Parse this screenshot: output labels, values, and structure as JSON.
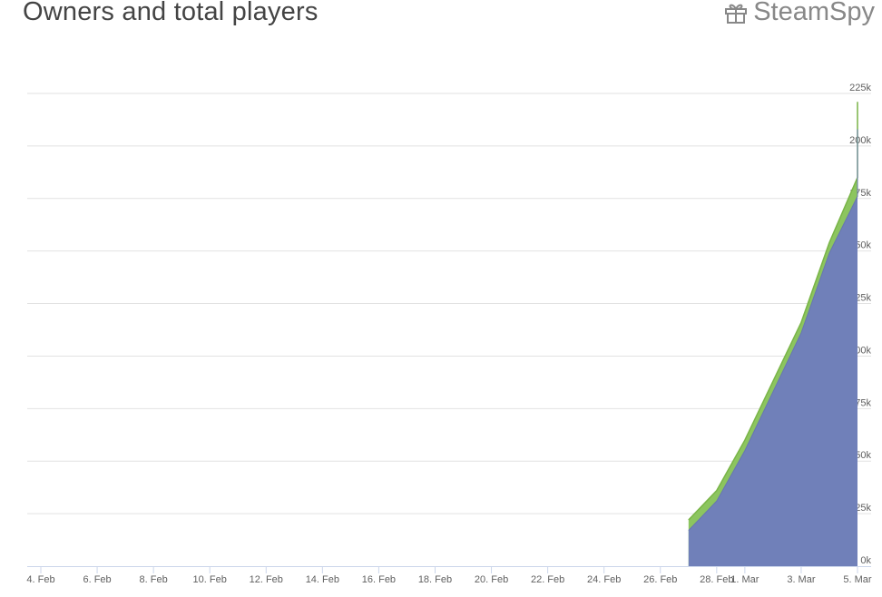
{
  "header": {
    "title": "Owners and total players",
    "brand": "SteamSpy",
    "brand_icon": "gift-icon"
  },
  "colors": {
    "players": "#8cc55f",
    "owners": "#7080b9",
    "grid": "#e2e2e2",
    "axis": "#ccd6eb"
  },
  "chart_data": {
    "type": "area",
    "title": "Owners and total players",
    "xlabel": "",
    "ylabel": "",
    "x_range": [
      "2018-02-04",
      "2018-03-05"
    ],
    "ylim": [
      0,
      225000
    ],
    "grid": true,
    "y_ticks": [
      0,
      25000,
      50000,
      75000,
      100000,
      125000,
      150000,
      175000,
      200000,
      225000
    ],
    "y_tick_labels": [
      "0k",
      "25k",
      "50k",
      "75k",
      "100k",
      "125k",
      "150k",
      "175k",
      "200k",
      "225k"
    ],
    "x_ticks": [
      "2018-02-04",
      "2018-02-06",
      "2018-02-08",
      "2018-02-10",
      "2018-02-12",
      "2018-02-14",
      "2018-02-16",
      "2018-02-18",
      "2018-02-20",
      "2018-02-22",
      "2018-02-24",
      "2018-02-26",
      "2018-02-28",
      "2018-03-01",
      "2018-03-03",
      "2018-03-05"
    ],
    "x_tick_labels": [
      "4. Feb",
      "6. Feb",
      "8. Feb",
      "10. Feb",
      "12. Feb",
      "14. Feb",
      "16. Feb",
      "18. Feb",
      "20. Feb",
      "22. Feb",
      "24. Feb",
      "26. Feb",
      "28. Feb",
      "1. Mar",
      "3. Mar",
      "5. Mar"
    ],
    "x": [
      "2018-02-27",
      "2018-02-28",
      "2018-03-01",
      "2018-03-02",
      "2018-03-03",
      "2018-03-04",
      "2018-03-05"
    ],
    "series": [
      {
        "color": "#7080b9",
        "values": [
          17000,
          31000,
          55000,
          83000,
          111000,
          149000,
          176000
        ]
      },
      {
        "color": "#8cc55f",
        "values": [
          22000,
          36000,
          60000,
          88000,
          116000,
          154000,
          185000
        ]
      }
    ],
    "trail_end": [
      "2018-03-05",
      208000,
      221000
    ]
  }
}
